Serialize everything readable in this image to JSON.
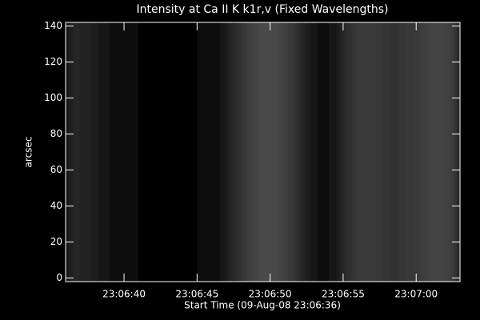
{
  "chart_data": {
    "type": "heatmap",
    "title": "Intensity at Ca II K k1r,v (Fixed Wavelengths)",
    "xlabel": "Start Time (09-Aug-08 23:06:36)",
    "ylabel": "arcsec",
    "x": [
      36.5,
      37.5,
      38.5,
      39.5,
      40.5,
      41.5,
      42.5,
      43.5,
      44.5,
      45.5,
      46.5,
      47.5,
      48.5,
      49.5,
      50.5,
      51.5,
      52.5,
      53.5,
      54.5,
      55.5,
      56.5,
      57.5,
      58.5,
      59.5,
      60.5,
      61.5,
      62.5
    ],
    "values": [
      40,
      35,
      25,
      12,
      8,
      6,
      5,
      5,
      6,
      8,
      15,
      40,
      60,
      75,
      70,
      55,
      30,
      15,
      20,
      50,
      60,
      55,
      50,
      55,
      60,
      70,
      65
    ],
    "zlim": [
      0,
      255
    ],
    "xlim": [
      36,
      63
    ],
    "xticks": [
      {
        "value": 40,
        "label": "23:06:40"
      },
      {
        "value": 45,
        "label": "23:06:45"
      },
      {
        "value": 50,
        "label": "23:06:50"
      },
      {
        "value": 55,
        "label": "23:06:55"
      },
      {
        "value": 60,
        "label": "23:07:00"
      }
    ],
    "ylim": [
      -2,
      142
    ],
    "yticks": [
      0,
      20,
      40,
      60,
      80,
      100,
      120,
      140
    ]
  }
}
